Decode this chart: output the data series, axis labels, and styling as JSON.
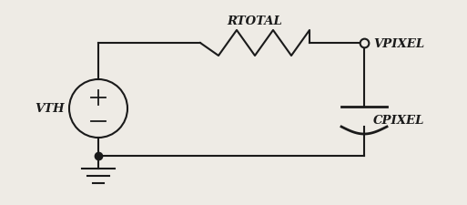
{
  "bg_color": "#eeebe5",
  "line_color": "#1a1a1a",
  "line_width": 1.5,
  "vth_label": "VTH",
  "rtotal_label": "RTOTAL",
  "vpixel_label": "VPIXEL",
  "cpixel_label": "CPIXEL",
  "font_size_labels": 9.5,
  "figsize": [
    5.13,
    2.26
  ],
  "dpi": 100
}
